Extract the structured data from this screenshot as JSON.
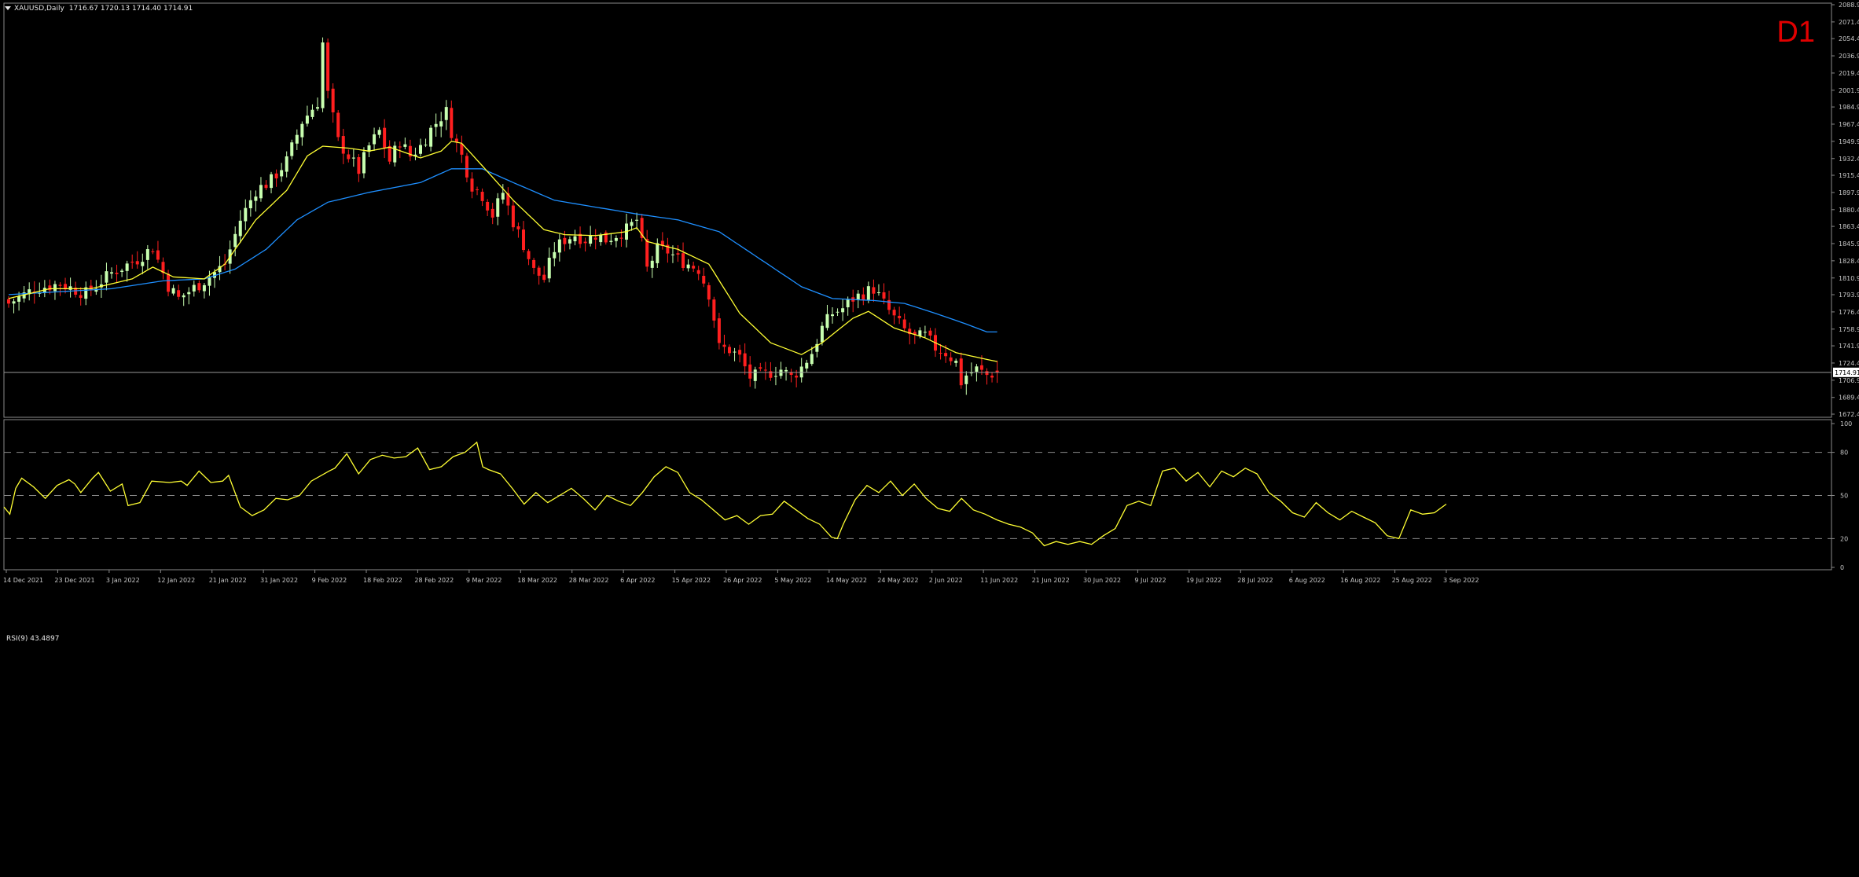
{
  "header": {
    "symbol": "XAUUSD,Daily",
    "ohlc": "1716.67 1720.13 1714.40 1714.91",
    "timeframe_label": "D1"
  },
  "colors": {
    "bull": "#c8ffb0",
    "bear": "#ff1f1f",
    "ma_fast": "#ffff33",
    "ma_slow": "#1e8fff",
    "rsi": "#ffff33",
    "price_line": "#9a9a9a"
  },
  "price_axis": {
    "ticks": [
      "2088.90",
      "2071.40",
      "2054.40",
      "2036.90",
      "2019.40",
      "2001.90",
      "1984.90",
      "1967.40",
      "1949.90",
      "1932.40",
      "1915.40",
      "1897.90",
      "1880.40",
      "1863.40",
      "1845.90",
      "1828.40",
      "1810.90",
      "1793.90",
      "1776.40",
      "1758.90",
      "1741.90",
      "1724.40",
      "1706.90",
      "1689.40",
      "1672.40"
    ],
    "current_price": "1714.91"
  },
  "rsi_panel": {
    "label": "RSI(9) 43.4897",
    "ticks": [
      "100",
      "80",
      "50",
      "20",
      "0"
    ],
    "levels": [
      80,
      50,
      20
    ]
  },
  "chart_data": [
    {
      "type": "candlestick",
      "symbol": "XAUUSD",
      "timeframe": "Daily",
      "ylim": [
        1672.4,
        2088.9
      ],
      "x_ticks": [
        "14 Dec 2021",
        "23 Dec 2021",
        "3 Jan 2022",
        "12 Jan 2022",
        "21 Jan 2022",
        "31 Jan 2022",
        "9 Feb 2022",
        "18 Feb 2022",
        "28 Feb 2022",
        "9 Mar 2022",
        "18 Mar 2022",
        "28 Mar 2022",
        "6 Apr 2022",
        "15 Apr 2022",
        "26 Apr 2022",
        "5 May 2022",
        "14 May 2022",
        "24 May 2022",
        "2 Jun 2022",
        "11 Jun 2022",
        "21 Jun 2022",
        "30 Jun 2022",
        "9 Jul 2022",
        "19 Jul 2022",
        "28 Jul 2022",
        "6 Aug 2022",
        "16 Aug 2022",
        "25 Aug 2022",
        "3 Sep 2022"
      ],
      "close_anchors": [
        [
          0,
          1785
        ],
        [
          5,
          1800
        ],
        [
          10,
          1805
        ],
        [
          15,
          1795
        ],
        [
          20,
          1816
        ],
        [
          25,
          1830
        ],
        [
          28,
          1842
        ],
        [
          31,
          1803
        ],
        [
          33,
          1790
        ],
        [
          38,
          1808
        ],
        [
          42,
          1825
        ],
        [
          45,
          1870
        ],
        [
          48,
          1900
        ],
        [
          51,
          1910
        ],
        [
          54,
          1930
        ],
        [
          57,
          1970
        ],
        [
          60,
          1990
        ],
        [
          61,
          2050
        ],
        [
          62,
          1998
        ],
        [
          64,
          1950
        ],
        [
          66,
          1935
        ],
        [
          68,
          1920
        ],
        [
          70,
          1945
        ],
        [
          72,
          1960
        ],
        [
          74,
          1930
        ],
        [
          76,
          1950
        ],
        [
          78,
          1935
        ],
        [
          80,
          1945
        ],
        [
          82,
          1962
        ],
        [
          84,
          1975
        ],
        [
          85,
          1980
        ],
        [
          86,
          1960
        ],
        [
          88,
          1935
        ],
        [
          90,
          1905
        ],
        [
          92,
          1895
        ],
        [
          94,
          1875
        ],
        [
          96,
          1898
        ],
        [
          98,
          1868
        ],
        [
          100,
          1845
        ],
        [
          102,
          1818
        ],
        [
          104,
          1810
        ],
        [
          106,
          1840
        ],
        [
          108,
          1850
        ],
        [
          110,
          1855
        ],
        [
          112,
          1850
        ],
        [
          114,
          1855
        ],
        [
          116,
          1850
        ],
        [
          118,
          1855
        ],
        [
          120,
          1860
        ],
        [
          122,
          1870
        ],
        [
          123,
          1845
        ],
        [
          124,
          1820
        ],
        [
          126,
          1840
        ],
        [
          128,
          1838
        ],
        [
          130,
          1830
        ],
        [
          132,
          1825
        ],
        [
          134,
          1820
        ],
        [
          136,
          1795
        ],
        [
          137,
          1770
        ],
        [
          138,
          1740
        ],
        [
          140,
          1738
        ],
        [
          142,
          1730
        ],
        [
          144,
          1710
        ],
        [
          146,
          1712
        ],
        [
          148,
          1715
        ],
        [
          150,
          1718
        ],
        [
          152,
          1710
        ],
        [
          154,
          1720
        ],
        [
          156,
          1735
        ],
        [
          158,
          1760
        ],
        [
          160,
          1775
        ],
        [
          162,
          1780
        ],
        [
          164,
          1790
        ],
        [
          166,
          1795
        ],
        [
          168,
          1800
        ],
        [
          170,
          1785
        ],
        [
          172,
          1770
        ],
        [
          174,
          1758
        ],
        [
          176,
          1750
        ],
        [
          178,
          1752
        ],
        [
          180,
          1740
        ],
        [
          182,
          1735
        ],
        [
          184,
          1725
        ],
        [
          185,
          1705
        ],
        [
          186,
          1712
        ],
        [
          188,
          1718
        ],
        [
          190,
          1712
        ],
        [
          192,
          1715
        ]
      ],
      "ma_fast_anchors": [
        [
          0,
          1790
        ],
        [
          8,
          1800
        ],
        [
          16,
          1800
        ],
        [
          24,
          1810
        ],
        [
          28,
          1822
        ],
        [
          32,
          1812
        ],
        [
          38,
          1810
        ],
        [
          42,
          1825
        ],
        [
          48,
          1870
        ],
        [
          54,
          1900
        ],
        [
          58,
          1935
        ],
        [
          61,
          1945
        ],
        [
          66,
          1943
        ],
        [
          70,
          1940
        ],
        [
          74,
          1944
        ],
        [
          80,
          1933
        ],
        [
          84,
          1940
        ],
        [
          86,
          1950
        ],
        [
          88,
          1948
        ],
        [
          92,
          1925
        ],
        [
          98,
          1890
        ],
        [
          104,
          1860
        ],
        [
          108,
          1855
        ],
        [
          114,
          1854
        ],
        [
          120,
          1858
        ],
        [
          122,
          1862
        ],
        [
          124,
          1848
        ],
        [
          130,
          1840
        ],
        [
          136,
          1825
        ],
        [
          142,
          1775
        ],
        [
          148,
          1745
        ],
        [
          154,
          1733
        ],
        [
          158,
          1745
        ],
        [
          164,
          1770
        ],
        [
          167,
          1777
        ],
        [
          172,
          1760
        ],
        [
          178,
          1750
        ],
        [
          184,
          1735
        ],
        [
          190,
          1728
        ],
        [
          192,
          1726
        ]
      ],
      "ma_slow_anchors": [
        [
          0,
          1794
        ],
        [
          10,
          1797
        ],
        [
          20,
          1800
        ],
        [
          30,
          1808
        ],
        [
          38,
          1810
        ],
        [
          44,
          1820
        ],
        [
          50,
          1840
        ],
        [
          56,
          1870
        ],
        [
          62,
          1888
        ],
        [
          70,
          1898
        ],
        [
          80,
          1908
        ],
        [
          86,
          1922
        ],
        [
          92,
          1922
        ],
        [
          98,
          1908
        ],
        [
          106,
          1890
        ],
        [
          114,
          1883
        ],
        [
          122,
          1876
        ],
        [
          130,
          1870
        ],
        [
          138,
          1858
        ],
        [
          146,
          1830
        ],
        [
          154,
          1802
        ],
        [
          160,
          1790
        ],
        [
          168,
          1788
        ],
        [
          174,
          1785
        ],
        [
          180,
          1775
        ],
        [
          186,
          1764
        ],
        [
          190,
          1756
        ]
      ]
    },
    {
      "type": "line",
      "name": "RSI(9)",
      "ylim": [
        0,
        100
      ],
      "levels": [
        80,
        50,
        20
      ],
      "last_value": 43.4897,
      "anchors": [
        [
          0,
          42
        ],
        [
          1,
          37
        ],
        [
          2,
          55
        ],
        [
          3,
          62
        ],
        [
          5,
          56
        ],
        [
          7,
          48
        ],
        [
          9,
          57
        ],
        [
          11,
          61
        ],
        [
          12,
          58
        ],
        [
          13,
          52
        ],
        [
          15,
          62
        ],
        [
          16,
          66
        ],
        [
          18,
          53
        ],
        [
          20,
          58
        ],
        [
          21,
          43
        ],
        [
          23,
          45
        ],
        [
          25,
          60
        ],
        [
          28,
          59
        ],
        [
          30,
          60
        ],
        [
          31,
          57
        ],
        [
          33,
          67
        ],
        [
          35,
          59
        ],
        [
          37,
          60
        ],
        [
          38,
          64
        ],
        [
          40,
          42
        ],
        [
          42,
          36
        ],
        [
          44,
          40
        ],
        [
          46,
          48
        ],
        [
          48,
          47
        ],
        [
          50,
          50
        ],
        [
          52,
          60
        ],
        [
          55,
          67
        ],
        [
          56,
          69
        ],
        [
          58,
          79
        ],
        [
          60,
          65
        ],
        [
          62,
          75
        ],
        [
          64,
          78
        ],
        [
          66,
          76
        ],
        [
          68,
          77
        ],
        [
          70,
          83
        ],
        [
          72,
          68
        ],
        [
          74,
          70
        ],
        [
          76,
          77
        ],
        [
          78,
          80
        ],
        [
          80,
          87
        ],
        [
          81,
          70
        ],
        [
          82,
          68
        ],
        [
          84,
          65
        ],
        [
          86,
          55
        ],
        [
          88,
          44
        ],
        [
          90,
          52
        ],
        [
          92,
          45
        ],
        [
          94,
          50
        ],
        [
          96,
          55
        ],
        [
          98,
          48
        ],
        [
          100,
          40
        ],
        [
          102,
          50
        ],
        [
          104,
          46
        ],
        [
          106,
          43
        ],
        [
          108,
          52
        ],
        [
          110,
          63
        ],
        [
          112,
          70
        ],
        [
          114,
          66
        ],
        [
          116,
          52
        ],
        [
          118,
          47
        ],
        [
          120,
          40
        ],
        [
          122,
          33
        ],
        [
          124,
          36
        ],
        [
          126,
          30
        ],
        [
          128,
          36
        ],
        [
          130,
          37
        ],
        [
          132,
          46
        ],
        [
          134,
          40
        ],
        [
          136,
          34
        ],
        [
          138,
          30
        ],
        [
          140,
          21
        ],
        [
          141,
          20
        ],
        [
          142,
          30
        ],
        [
          144,
          47
        ],
        [
          146,
          57
        ],
        [
          148,
          52
        ],
        [
          150,
          60
        ],
        [
          152,
          50
        ],
        [
          154,
          58
        ],
        [
          156,
          48
        ],
        [
          158,
          41
        ],
        [
          160,
          39
        ],
        [
          162,
          48
        ],
        [
          164,
          40
        ],
        [
          166,
          37
        ],
        [
          168,
          33
        ],
        [
          170,
          30
        ],
        [
          172,
          28
        ],
        [
          174,
          24
        ],
        [
          176,
          15
        ],
        [
          178,
          18
        ],
        [
          180,
          16
        ],
        [
          182,
          18
        ],
        [
          184,
          16
        ],
        [
          186,
          22
        ],
        [
          188,
          27
        ],
        [
          190,
          43
        ],
        [
          192,
          46
        ],
        [
          194,
          43
        ],
        [
          196,
          67
        ],
        [
          198,
          69
        ],
        [
          200,
          60
        ],
        [
          202,
          66
        ],
        [
          204,
          56
        ],
        [
          206,
          67
        ],
        [
          208,
          63
        ],
        [
          210,
          69
        ],
        [
          212,
          65
        ],
        [
          214,
          52
        ],
        [
          216,
          46
        ],
        [
          218,
          38
        ],
        [
          220,
          35
        ],
        [
          222,
          45
        ],
        [
          224,
          38
        ],
        [
          226,
          33
        ],
        [
          228,
          39
        ],
        [
          230,
          35
        ],
        [
          232,
          31
        ],
        [
          234,
          22
        ],
        [
          236,
          20
        ],
        [
          238,
          40
        ],
        [
          240,
          37
        ],
        [
          242,
          38
        ],
        [
          244,
          44
        ]
      ]
    }
  ]
}
